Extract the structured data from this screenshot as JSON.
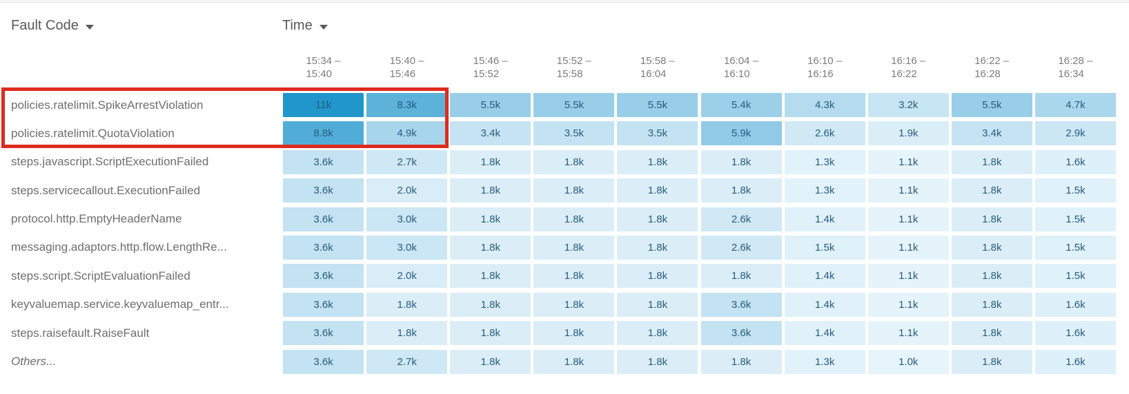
{
  "controls": {
    "row_dimension_label": "Fault Code",
    "column_dimension_label": "Time"
  },
  "colors": {
    "heat_scale": [
      {
        "value": 1000,
        "color": "#e6f4fb"
      },
      {
        "value": 3600,
        "color": "#c3e2f2"
      },
      {
        "value": 11000,
        "color": "#2196cb"
      }
    ],
    "cell_text": "#255c7d",
    "row_label_text": "#6e6e6e",
    "time_header_text": "#7c7c7c",
    "dimension_label_text": "#585858",
    "highlight_border": "#dd2b1e"
  },
  "chart_data": {
    "type": "heatmap",
    "row_dimension": "Fault Code",
    "column_dimension": "Time",
    "columns": [
      {
        "line1": "15:34 –",
        "line2": "15:40"
      },
      {
        "line1": "15:40 –",
        "line2": "15:46"
      },
      {
        "line1": "15:46 –",
        "line2": "15:52"
      },
      {
        "line1": "15:52 –",
        "line2": "15:58"
      },
      {
        "line1": "15:58 –",
        "line2": "16:04"
      },
      {
        "line1": "16:04 –",
        "line2": "16:10"
      },
      {
        "line1": "16:10 –",
        "line2": "16:16"
      },
      {
        "line1": "16:16 –",
        "line2": "16:22"
      },
      {
        "line1": "16:22 –",
        "line2": "16:28"
      },
      {
        "line1": "16:28 –",
        "line2": "16:34"
      }
    ],
    "rows": [
      {
        "label": "policies.ratelimit.SpikeArrestViolation",
        "italic": false,
        "values": [
          11000,
          8300,
          5500,
          5500,
          5500,
          5400,
          4300,
          3200,
          5500,
          4700
        ],
        "display": [
          "11k",
          "8.3k",
          "5.5k",
          "5.5k",
          "5.5k",
          "5.4k",
          "4.3k",
          "3.2k",
          "5.5k",
          "4.7k"
        ]
      },
      {
        "label": "policies.ratelimit.QuotaViolation",
        "italic": false,
        "values": [
          8800,
          4900,
          3400,
          3500,
          3500,
          5900,
          2600,
          1900,
          3400,
          2900
        ],
        "display": [
          "8.8k",
          "4.9k",
          "3.4k",
          "3.5k",
          "3.5k",
          "5.9k",
          "2.6k",
          "1.9k",
          "3.4k",
          "2.9k"
        ]
      },
      {
        "label": "steps.javascript.ScriptExecutionFailed",
        "italic": false,
        "values": [
          3600,
          2700,
          1800,
          1800,
          1800,
          1800,
          1300,
          1100,
          1800,
          1600
        ],
        "display": [
          "3.6k",
          "2.7k",
          "1.8k",
          "1.8k",
          "1.8k",
          "1.8k",
          "1.3k",
          "1.1k",
          "1.8k",
          "1.6k"
        ]
      },
      {
        "label": "steps.servicecallout.ExecutionFailed",
        "italic": false,
        "values": [
          3600,
          2000,
          1800,
          1800,
          1800,
          1800,
          1300,
          1100,
          1800,
          1500
        ],
        "display": [
          "3.6k",
          "2.0k",
          "1.8k",
          "1.8k",
          "1.8k",
          "1.8k",
          "1.3k",
          "1.1k",
          "1.8k",
          "1.5k"
        ]
      },
      {
        "label": "protocol.http.EmptyHeaderName",
        "italic": false,
        "values": [
          3600,
          3000,
          1800,
          1800,
          1800,
          2600,
          1400,
          1100,
          1800,
          1500
        ],
        "display": [
          "3.6k",
          "3.0k",
          "1.8k",
          "1.8k",
          "1.8k",
          "2.6k",
          "1.4k",
          "1.1k",
          "1.8k",
          "1.5k"
        ]
      },
      {
        "label": "messaging.adaptors.http.flow.LengthRe...",
        "italic": false,
        "values": [
          3600,
          3000,
          1800,
          1800,
          1800,
          2600,
          1500,
          1100,
          1800,
          1500
        ],
        "display": [
          "3.6k",
          "3.0k",
          "1.8k",
          "1.8k",
          "1.8k",
          "2.6k",
          "1.5k",
          "1.1k",
          "1.8k",
          "1.5k"
        ]
      },
      {
        "label": "steps.script.ScriptEvaluationFailed",
        "italic": false,
        "values": [
          3600,
          2000,
          1800,
          1800,
          1800,
          1800,
          1400,
          1100,
          1800,
          1500
        ],
        "display": [
          "3.6k",
          "2.0k",
          "1.8k",
          "1.8k",
          "1.8k",
          "1.8k",
          "1.4k",
          "1.1k",
          "1.8k",
          "1.5k"
        ]
      },
      {
        "label": "keyvaluemap.service.keyvaluemap_entr...",
        "italic": false,
        "values": [
          3600,
          1800,
          1800,
          1800,
          1800,
          3600,
          1400,
          1100,
          1800,
          1600
        ],
        "display": [
          "3.6k",
          "1.8k",
          "1.8k",
          "1.8k",
          "1.8k",
          "3.6k",
          "1.4k",
          "1.1k",
          "1.8k",
          "1.6k"
        ]
      },
      {
        "label": "steps.raisefault.RaiseFault",
        "italic": false,
        "values": [
          3600,
          1800,
          1800,
          1800,
          1800,
          3600,
          1400,
          1100,
          1800,
          1600
        ],
        "display": [
          "3.6k",
          "1.8k",
          "1.8k",
          "1.8k",
          "1.8k",
          "3.6k",
          "1.4k",
          "1.1k",
          "1.8k",
          "1.6k"
        ]
      },
      {
        "label": "Others...",
        "italic": true,
        "values": [
          3600,
          2700,
          1800,
          1800,
          1800,
          1800,
          1300,
          1000,
          1800,
          1600
        ],
        "display": [
          "3.6k",
          "2.7k",
          "1.8k",
          "1.8k",
          "1.8k",
          "1.8k",
          "1.3k",
          "1.0k",
          "1.8k",
          "1.6k"
        ]
      }
    ],
    "highlight": {
      "type": "red-box-annotation",
      "rows": [
        "policies.ratelimit.SpikeArrestViolation",
        "policies.ratelimit.QuotaViolation"
      ],
      "columns": [
        "15:34 – 15:40",
        "15:40 – 15:46"
      ]
    }
  }
}
